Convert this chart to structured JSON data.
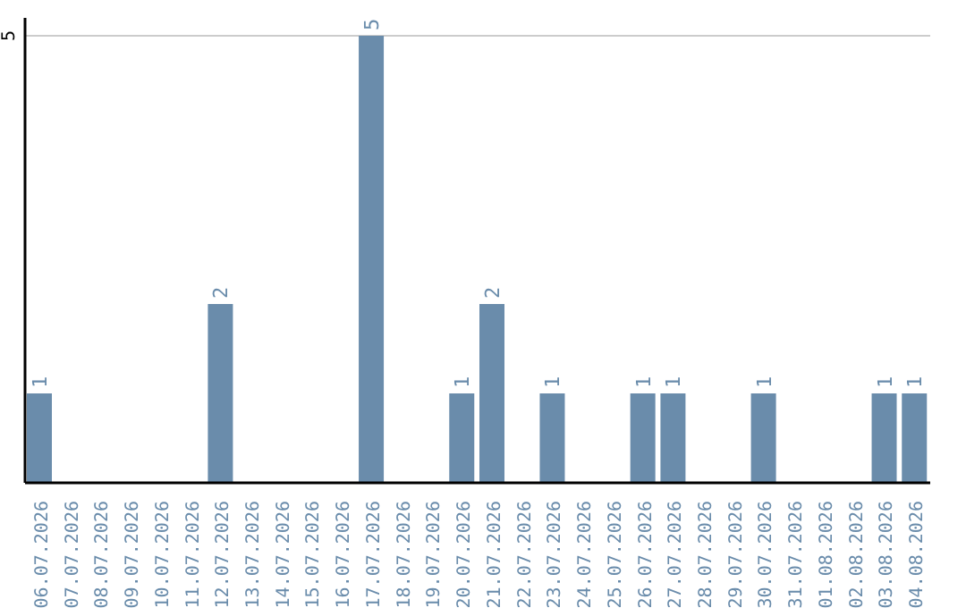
{
  "chart_data": {
    "type": "bar",
    "categories": [
      "06.07.2026",
      "07.07.2026",
      "08.07.2026",
      "09.07.2026",
      "10.07.2026",
      "11.07.2026",
      "12.07.2026",
      "13.07.2026",
      "14.07.2026",
      "15.07.2026",
      "16.07.2026",
      "17.07.2026",
      "18.07.2026",
      "19.07.2026",
      "20.07.2026",
      "21.07.2026",
      "22.07.2026",
      "23.07.2026",
      "24.07.2026",
      "25.07.2026",
      "26.07.2026",
      "27.07.2026",
      "28.07.2026",
      "29.07.2026",
      "30.07.2026",
      "31.07.2026",
      "01.08.2026",
      "02.08.2026",
      "03.08.2026",
      "04.08.2026"
    ],
    "values": [
      1,
      0,
      0,
      0,
      0,
      0,
      2,
      0,
      0,
      0,
      0,
      5,
      0,
      0,
      1,
      2,
      0,
      1,
      0,
      0,
      1,
      1,
      0,
      0,
      1,
      0,
      0,
      0,
      1,
      1
    ],
    "value_labels": [
      "1",
      null,
      null,
      null,
      null,
      null,
      "2",
      null,
      null,
      null,
      null,
      "5",
      null,
      null,
      "1",
      "2",
      null,
      "1",
      null,
      null,
      "1",
      "1",
      null,
      null,
      "1",
      null,
      null,
      null,
      "1",
      "1"
    ],
    "color": "#6a8cab",
    "ylim": [
      0,
      5.2
    ],
    "yticks": [
      5
    ],
    "grid": "y"
  }
}
